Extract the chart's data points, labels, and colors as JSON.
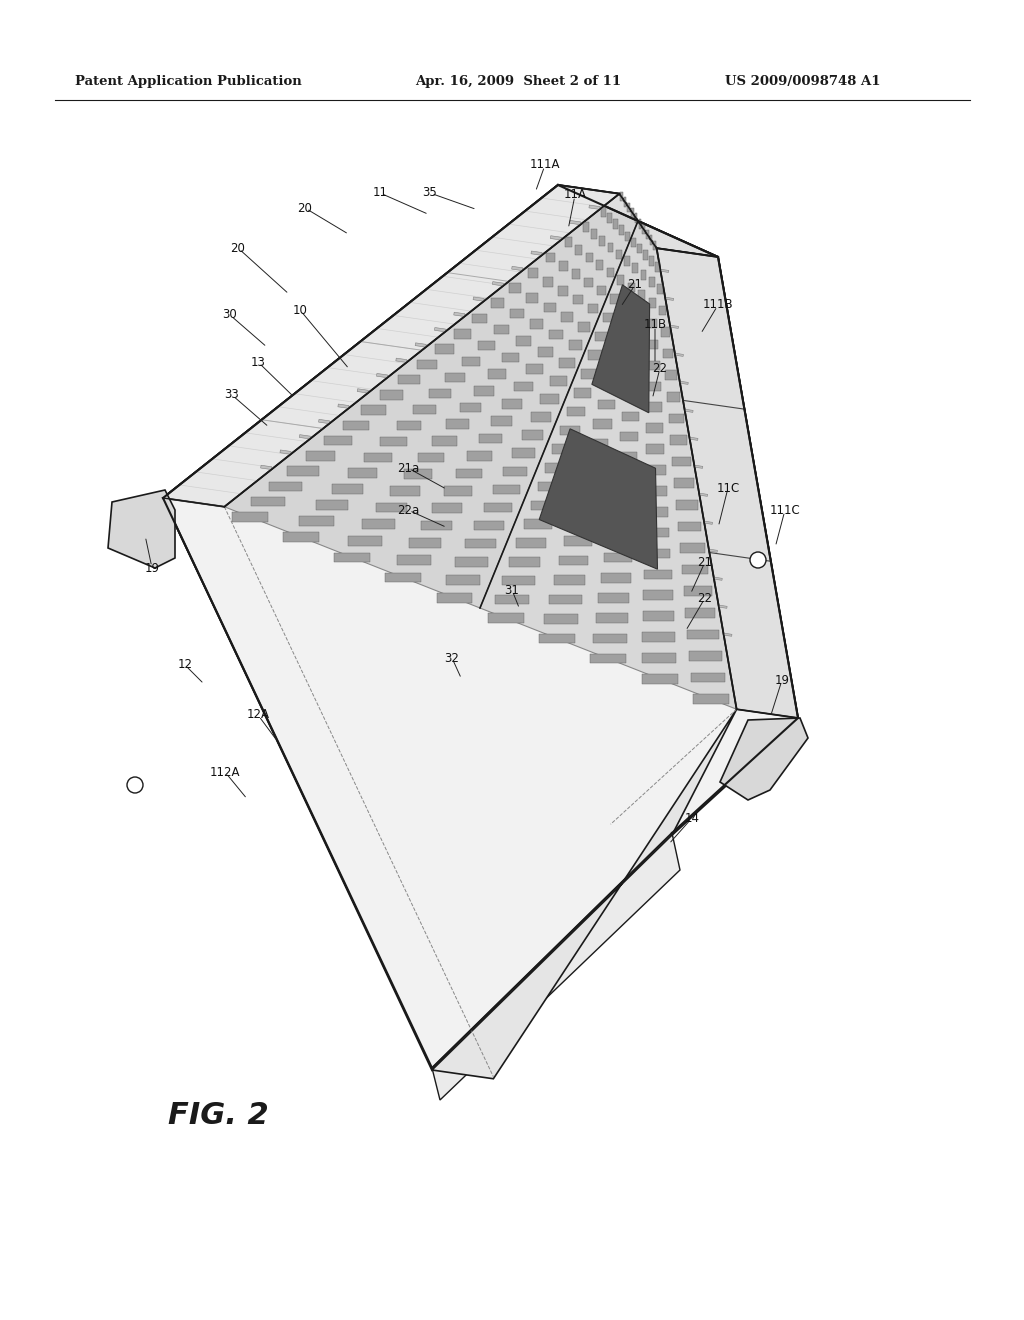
{
  "header_left": "Patent Application Publication",
  "header_mid": "Apr. 16, 2009  Sheet 2 of 11",
  "header_right": "US 2009/0098748 A1",
  "fig_label": "FIG. 2",
  "bg_color": "#ffffff",
  "line_color": "#1a1a1a",
  "gray_light": "#e8e8e8",
  "gray_mid": "#c0c0c0",
  "gray_dark": "#808080",
  "gray_darker": "#505050",
  "labels": [
    [
      "10",
      285,
      310
    ],
    [
      "11",
      378,
      193
    ],
    [
      "35",
      430,
      197
    ],
    [
      "111A",
      546,
      168
    ],
    [
      "11A",
      572,
      200
    ],
    [
      "21",
      633,
      290
    ],
    [
      "11B",
      655,
      328
    ],
    [
      "111B",
      710,
      308
    ],
    [
      "22",
      660,
      368
    ],
    [
      "11C",
      725,
      490
    ],
    [
      "111C",
      782,
      510
    ],
    [
      "21",
      700,
      565
    ],
    [
      "22",
      700,
      600
    ],
    [
      "19",
      158,
      568
    ],
    [
      "19",
      778,
      680
    ],
    [
      "20",
      240,
      248
    ],
    [
      "20",
      310,
      210
    ],
    [
      "30",
      233,
      318
    ],
    [
      "13",
      262,
      365
    ],
    [
      "33",
      238,
      398
    ],
    [
      "21a",
      410,
      468
    ],
    [
      "22a",
      415,
      510
    ],
    [
      "31",
      510,
      590
    ],
    [
      "32",
      455,
      660
    ],
    [
      "12",
      188,
      668
    ],
    [
      "12A",
      260,
      718
    ],
    [
      "112A",
      228,
      775
    ],
    [
      "14",
      690,
      818
    ]
  ]
}
